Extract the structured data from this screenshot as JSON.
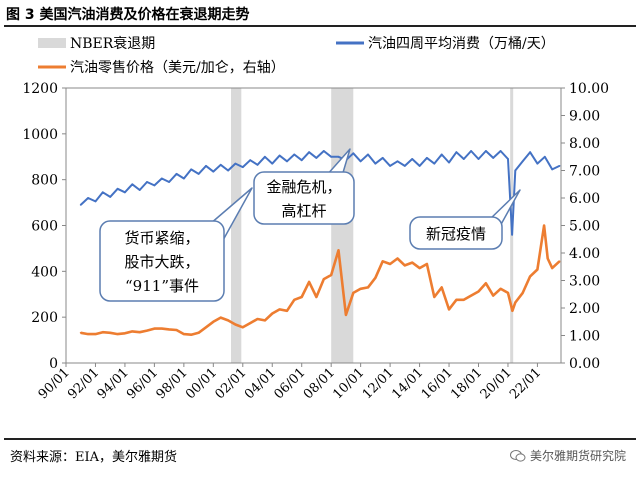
{
  "figure": {
    "title": "图 3  美国汽油消费及价格在衰退期走势",
    "source": "资料来源：EIA，美尔雅期货",
    "watermark": "美尔雅期货研究院"
  },
  "colors": {
    "consumption": "#4472C4",
    "price": "#ED7D31",
    "recession": "#D9D9D9"
  },
  "chart_data": {
    "type": "line",
    "legend": [
      {
        "key": "recession",
        "label": "NBER衰退期"
      },
      {
        "key": "consumption",
        "label": "汽油四周平均消费（万桶/天）"
      },
      {
        "key": "price",
        "label": "汽油零售价格（美元/加仑，右轴）"
      }
    ],
    "x_tick_labels": [
      "90/01",
      "92/01",
      "94/01",
      "96/01",
      "98/01",
      "00/01",
      "02/01",
      "04/01",
      "06/01",
      "08/01",
      "10/01",
      "12/01",
      "14/01",
      "16/01",
      "18/01",
      "20/01",
      "22/01"
    ],
    "x_range": [
      1990.0,
      2023.6
    ],
    "y_left": {
      "range": [
        0,
        1200
      ],
      "ticks": [
        "0",
        "200",
        "400",
        "600",
        "800",
        "1000",
        "1200"
      ]
    },
    "y_right": {
      "range": [
        0,
        10
      ],
      "ticks": [
        "0.00",
        "1.00",
        "2.00",
        "3.00",
        "4.00",
        "5.00",
        "6.00",
        "7.00",
        "8.00",
        "9.00",
        "10.00"
      ]
    },
    "recessions": [
      [
        2001.2,
        2001.9
      ],
      [
        2008.0,
        2009.5
      ],
      [
        2020.15,
        2020.35
      ]
    ],
    "series": [
      {
        "name": "汽油四周平均消费（万桶/天）",
        "axis": "left",
        "x": [
          1991.0,
          1991.5,
          1992.0,
          1992.5,
          1993.0,
          1993.5,
          1994.0,
          1994.5,
          1995.0,
          1995.5,
          1996.0,
          1996.5,
          1997.0,
          1997.5,
          1998.0,
          1998.5,
          1999.0,
          1999.5,
          2000.0,
          2000.5,
          2001.0,
          2001.5,
          2002.0,
          2002.5,
          2003.0,
          2003.5,
          2004.0,
          2004.5,
          2005.0,
          2005.5,
          2006.0,
          2006.5,
          2007.0,
          2007.5,
          2008.0,
          2008.5,
          2009.0,
          2009.5,
          2010.0,
          2010.5,
          2011.0,
          2011.5,
          2012.0,
          2012.5,
          2013.0,
          2013.5,
          2014.0,
          2014.5,
          2015.0,
          2015.5,
          2016.0,
          2016.5,
          2017.0,
          2017.5,
          2018.0,
          2018.5,
          2019.0,
          2019.5,
          2020.0,
          2020.28,
          2020.5,
          2021.0,
          2021.5,
          2022.0,
          2022.5,
          2023.0,
          2023.5
        ],
        "values": [
          690,
          720,
          705,
          745,
          725,
          760,
          745,
          780,
          755,
          790,
          775,
          805,
          790,
          825,
          805,
          845,
          825,
          860,
          835,
          865,
          840,
          870,
          855,
          885,
          865,
          900,
          870,
          905,
          880,
          910,
          885,
          920,
          895,
          925,
          900,
          900,
          885,
          915,
          880,
          910,
          870,
          895,
          860,
          880,
          860,
          890,
          860,
          895,
          870,
          910,
          875,
          920,
          890,
          925,
          890,
          925,
          895,
          925,
          890,
          560,
          840,
          880,
          920,
          870,
          900,
          845,
          860
        ]
      },
      {
        "name": "汽油零售价格（美元/加仑，右轴）",
        "axis": "right",
        "x": [
          1991.0,
          1991.5,
          1992.0,
          1992.5,
          1993.0,
          1993.5,
          1994.0,
          1994.5,
          1995.0,
          1995.5,
          1996.0,
          1996.5,
          1997.0,
          1997.5,
          1998.0,
          1998.5,
          1999.0,
          1999.5,
          2000.0,
          2000.5,
          2001.0,
          2001.5,
          2002.0,
          2002.5,
          2003.0,
          2003.5,
          2004.0,
          2004.5,
          2005.0,
          2005.5,
          2006.0,
          2006.5,
          2007.0,
          2007.5,
          2008.0,
          2008.5,
          2009.0,
          2009.5,
          2010.0,
          2010.5,
          2011.0,
          2011.5,
          2012.0,
          2012.5,
          2013.0,
          2013.5,
          2014.0,
          2014.5,
          2015.0,
          2015.5,
          2016.0,
          2016.5,
          2017.0,
          2017.5,
          2018.0,
          2018.5,
          2019.0,
          2019.5,
          2020.0,
          2020.3,
          2020.5,
          2021.0,
          2021.5,
          2022.0,
          2022.45,
          2022.7,
          2023.0,
          2023.5
        ],
        "values": [
          1.1,
          1.05,
          1.05,
          1.12,
          1.1,
          1.05,
          1.08,
          1.15,
          1.12,
          1.18,
          1.25,
          1.25,
          1.22,
          1.2,
          1.05,
          1.03,
          1.1,
          1.3,
          1.5,
          1.65,
          1.55,
          1.4,
          1.3,
          1.45,
          1.6,
          1.55,
          1.8,
          1.95,
          1.9,
          2.3,
          2.4,
          2.95,
          2.4,
          3.05,
          3.2,
          4.1,
          1.75,
          2.55,
          2.7,
          2.75,
          3.1,
          3.7,
          3.6,
          3.8,
          3.55,
          3.65,
          3.45,
          3.6,
          2.4,
          2.75,
          1.95,
          2.3,
          2.3,
          2.45,
          2.6,
          2.9,
          2.45,
          2.7,
          2.55,
          1.9,
          2.2,
          2.55,
          3.15,
          3.4,
          5.0,
          3.8,
          3.45,
          3.7
        ]
      }
    ],
    "annotations": [
      {
        "lines": [
          "货币紧缩，",
          "股市大跌，",
          "“911”事件"
        ]
      },
      {
        "lines": [
          "金融危机，",
          "高杠杆"
        ]
      },
      {
        "lines": [
          "新冠疫情"
        ]
      }
    ]
  }
}
